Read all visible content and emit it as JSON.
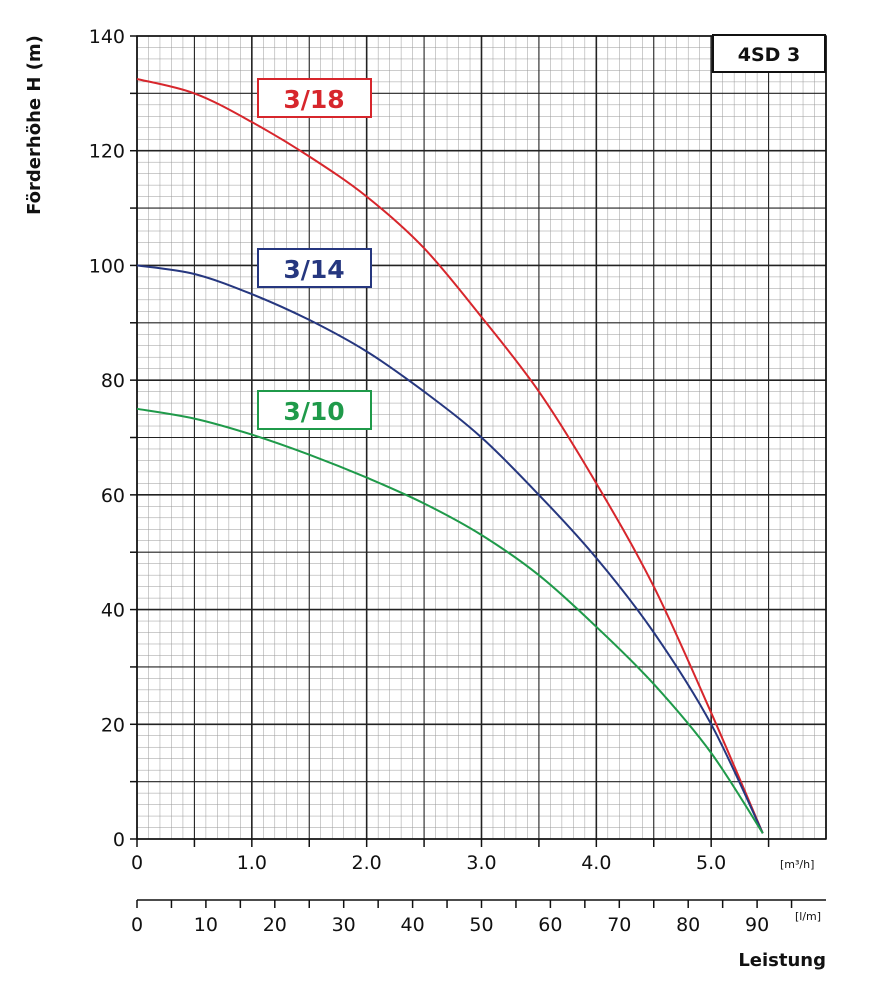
{
  "chart_data": {
    "type": "line",
    "title": "",
    "model_label": "4SD 3",
    "ylabel": "Förderhöhe   H (m)",
    "xlabel": "Leistung",
    "ylim": [
      0,
      140
    ],
    "xlim": [
      0,
      6.0
    ],
    "grid": true,
    "y_ticks": [
      "0",
      "20",
      "40",
      "60",
      "80",
      "100",
      "120",
      "140"
    ],
    "x_ticks": [
      "0",
      "1.0",
      "2.0",
      "3.0",
      "4.0",
      "5.0"
    ],
    "x_unit": "[m³/h]",
    "x2_ticks": [
      "0",
      "10",
      "20",
      "30",
      "40",
      "50",
      "60",
      "70",
      "80",
      "90"
    ],
    "x2_unit": "[l/m]",
    "series": [
      {
        "name": "3/18",
        "color": "#d7262c",
        "x": [
          0,
          0.5,
          1.0,
          1.5,
          2.0,
          2.5,
          3.0,
          3.5,
          4.0,
          4.5,
          5.0,
          5.45
        ],
        "y": [
          132.5,
          130,
          125,
          119,
          112,
          103,
          91,
          78,
          62,
          44,
          22,
          1
        ]
      },
      {
        "name": "3/14",
        "color": "#26377f",
        "x": [
          0,
          0.5,
          1.0,
          1.5,
          2.0,
          2.5,
          3.0,
          3.5,
          4.0,
          4.5,
          5.0,
          5.45
        ],
        "y": [
          100,
          98.5,
          95,
          90.5,
          85,
          78,
          70,
          60,
          49,
          36,
          20,
          1
        ]
      },
      {
        "name": "3/10",
        "color": "#1f9a4a",
        "x": [
          0,
          0.5,
          1.0,
          1.5,
          2.0,
          2.5,
          3.0,
          3.5,
          4.0,
          4.5,
          5.0,
          5.45
        ],
        "y": [
          75,
          73.3,
          70.5,
          67,
          63,
          58.5,
          53,
          46,
          37,
          27,
          15,
          1
        ]
      }
    ]
  }
}
